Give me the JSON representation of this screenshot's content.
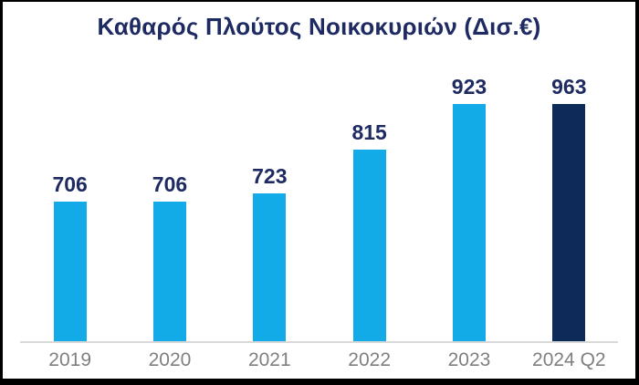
{
  "title": "Καθαρός Πλούτος Νοικοκυριών (Δισ.€)",
  "colors": {
    "bar_primary": "#12abe8",
    "bar_highlight": "#0d2a58",
    "title_text": "#1e2a62",
    "value_label_text": "#1e2a62",
    "axis_label_text": "#7f7f7f",
    "axis_line": "#d9d9d9",
    "frame_border": "#000000",
    "background": "#ffffff"
  },
  "chart_data": {
    "type": "bar",
    "title": "Καθαρός Πλούτος Νοικοκυριών (Δισ.€)",
    "categories": [
      "2019",
      "2020",
      "2021",
      "2022",
      "2023",
      "2024 Q2"
    ],
    "values": [
      706,
      706,
      723,
      815,
      923,
      963
    ],
    "data_labels": [
      706,
      706,
      723,
      815,
      923,
      963
    ],
    "highlight_index": 5,
    "xlabel": "",
    "ylabel": "",
    "ylim": [
      410,
      970
    ],
    "grid": false,
    "legend": false,
    "y_axis_visible": false,
    "data_labels_shown": true
  }
}
